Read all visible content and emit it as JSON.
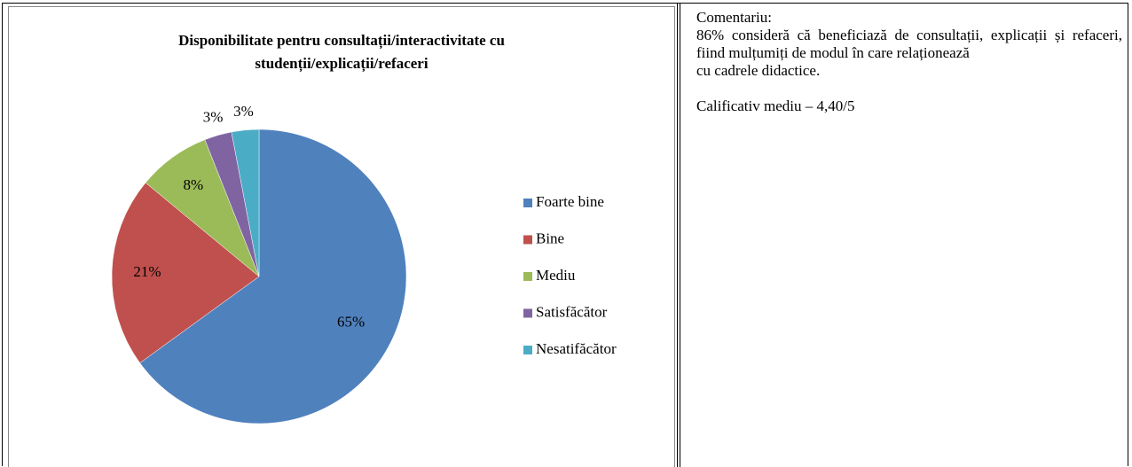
{
  "chart_data": {
    "type": "pie",
    "title": "Disponibilitate pentru consultații/interactivitate cu studenții/explicații/refaceri",
    "title_lines": [
      "Disponibilitate pentru consultații/interactivitate cu",
      "studenții/explicații/refaceri"
    ],
    "categories": [
      "Foarte bine",
      "Bine",
      "Mediu",
      "Satisfăcător",
      "Nesatifăcător"
    ],
    "values": [
      65,
      21,
      8,
      3,
      3
    ],
    "value_labels": [
      "65%",
      "21%",
      "8%",
      "3%",
      "3%"
    ],
    "colors": [
      "#4f81bd",
      "#c0504d",
      "#9bbb59",
      "#8064a2",
      "#4bacc6"
    ],
    "legend": "right"
  },
  "comment": {
    "heading": "Comentariu:",
    "paragraphs": [
      "86% consideră că beneficiază de consultații, explicații și refaceri, fiind mulțumiți de modul în care relaționează",
      "cu cadrele didactice.",
      "Calificativ mediu – 4,40/5"
    ]
  }
}
